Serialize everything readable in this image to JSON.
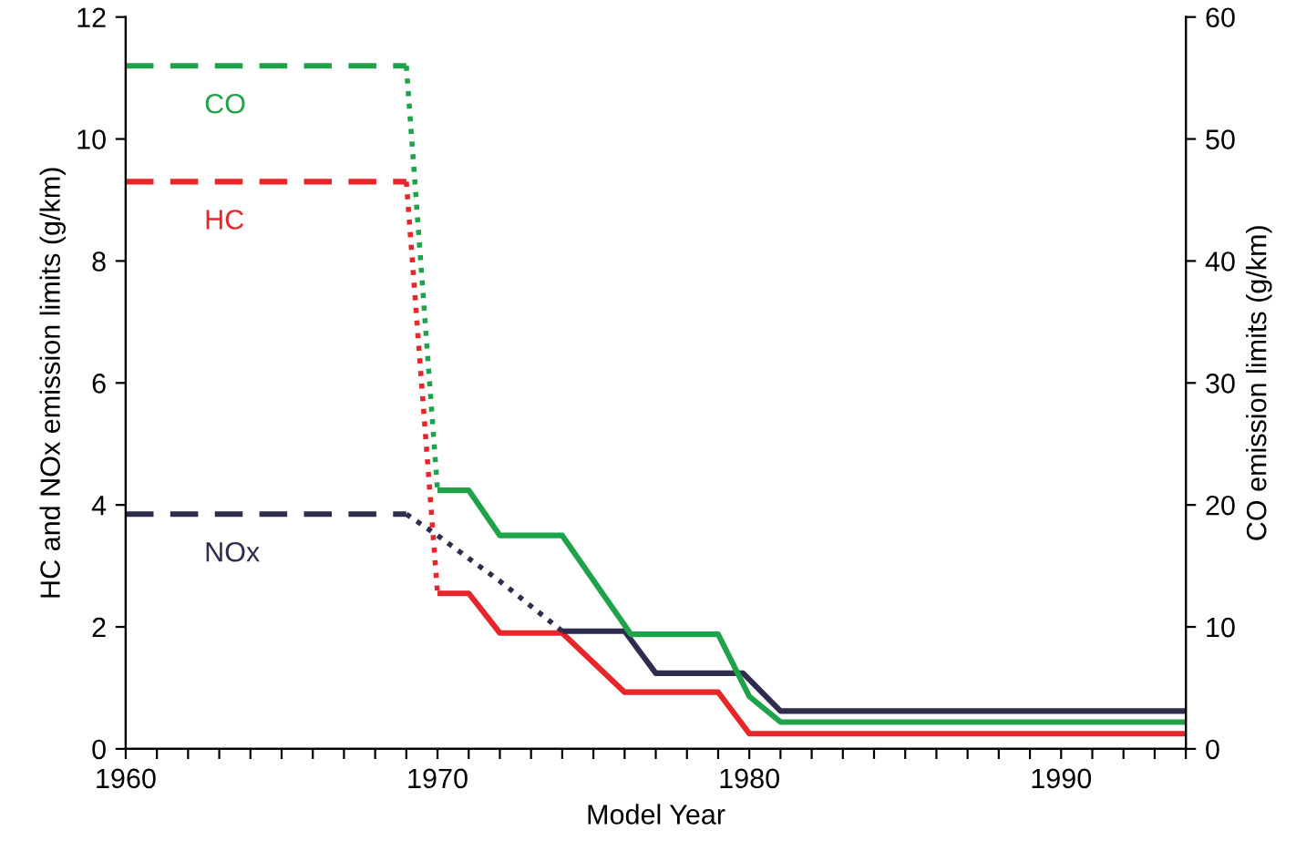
{
  "chart_data": {
    "type": "line",
    "xlabel": "Model Year",
    "ylabel": "HC and NOx emission limits (g/km)",
    "y2label": "CO emission limits (g/km)",
    "xlim": [
      1960,
      1994
    ],
    "xticks": [
      1960,
      {
        "value": 1961,
        "label": null
      },
      {
        "value": 1962,
        "label": null
      },
      {
        "value": 1963,
        "label": null
      },
      {
        "value": 1964,
        "label": null
      },
      {
        "value": 1965,
        "label": null
      },
      {
        "value": 1966,
        "label": null
      },
      {
        "value": 1967,
        "label": null
      },
      {
        "value": 1968,
        "label": null
      },
      {
        "value": 1969,
        "label": null
      },
      1970,
      {
        "value": 1971,
        "label": null
      },
      {
        "value": 1972,
        "label": null
      },
      {
        "value": 1973,
        "label": null
      },
      {
        "value": 1974,
        "label": null
      },
      {
        "value": 1975,
        "label": null
      },
      {
        "value": 1976,
        "label": null
      },
      {
        "value": 1977,
        "label": null
      },
      {
        "value": 1978,
        "label": null
      },
      {
        "value": 1979,
        "label": null
      },
      1980,
      {
        "value": 1981,
        "label": null
      },
      {
        "value": 1982,
        "label": null
      },
      {
        "value": 1983,
        "label": null
      },
      {
        "value": 1984,
        "label": null
      },
      {
        "value": 1985,
        "label": null
      },
      {
        "value": 1986,
        "label": null
      },
      {
        "value": 1987,
        "label": null
      },
      {
        "value": 1988,
        "label": null
      },
      {
        "value": 1989,
        "label": null
      },
      1990,
      {
        "value": 1991,
        "label": null
      },
      {
        "value": 1992,
        "label": null
      },
      {
        "value": 1993,
        "label": null
      },
      {
        "value": 1994,
        "label": null
      }
    ],
    "ylim": [
      0,
      12
    ],
    "yticks": [
      0,
      2,
      4,
      6,
      8,
      10,
      12
    ],
    "y2lim": [
      0,
      60
    ],
    "y2ticks": [
      0,
      10,
      20,
      30,
      40,
      50,
      60
    ],
    "grid": false,
    "legend": false,
    "marker": "none",
    "series": [
      {
        "name": "CO",
        "color": "#1fa34a",
        "axis": "y2",
        "line_style": "dashed",
        "x": [
          1960,
          1969
        ],
        "values": [
          56,
          56
        ]
      },
      {
        "color": "#1fa34a",
        "axis": "y2",
        "line_style": "dotted",
        "x": [
          1969,
          1970
        ],
        "values": [
          56,
          21.2
        ]
      },
      {
        "color": "#1fa34a",
        "axis": "y2",
        "line_style": "solid",
        "x": [
          1970,
          1971,
          1972,
          1974,
          1976.2,
          1979,
          1980,
          1981,
          1994
        ],
        "values": [
          21.2,
          21.2,
          17.5,
          17.5,
          9.4,
          9.4,
          4.3,
          2.2,
          2.2
        ]
      },
      {
        "name": "HC",
        "color": "#e8262a",
        "line_style": "dashed",
        "x": [
          1960,
          1969
        ],
        "values": [
          9.3,
          9.3
        ]
      },
      {
        "color": "#e8262a",
        "line_style": "dotted",
        "x": [
          1969,
          1970
        ],
        "values": [
          9.3,
          2.55
        ]
      },
      {
        "color": "#e8262a",
        "line_style": "solid",
        "x": [
          1970,
          1971,
          1972,
          1974,
          1976,
          1979,
          1980,
          1994
        ],
        "values": [
          2.55,
          2.55,
          1.9,
          1.9,
          0.93,
          0.93,
          0.25,
          0.25
        ]
      },
      {
        "name": "NOx",
        "color": "#2e2d4f",
        "line_style": "dashed",
        "x": [
          1960,
          1969
        ],
        "values": [
          3.85,
          3.85
        ]
      },
      {
        "color": "#2e2d4f",
        "line_style": "dotted",
        "x": [
          1969,
          1970,
          1972,
          1974
        ],
        "values": [
          3.85,
          3.5,
          2.75,
          1.93
        ]
      },
      {
        "color": "#2e2d4f",
        "line_style": "solid",
        "x": [
          1974,
          1976,
          1977,
          1979.8,
          1981,
          1994
        ],
        "values": [
          1.93,
          1.93,
          1.24,
          1.24,
          0.62,
          0.62
        ]
      }
    ]
  }
}
